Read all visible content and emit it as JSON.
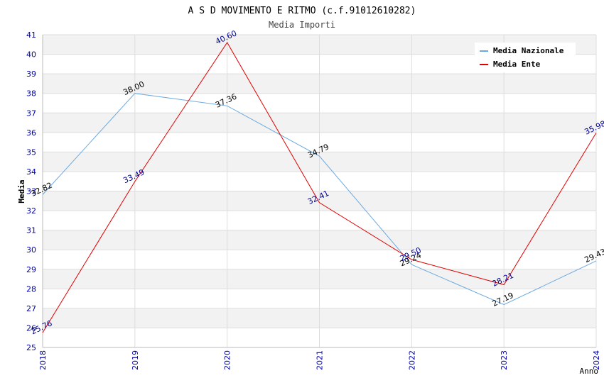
{
  "chart_data": {
    "type": "line",
    "title": "A S D MOVIMENTO E RITMO (c.f.91012610282)",
    "subtitle": "Media Importi",
    "xlabel": "Anno",
    "ylabel": "Media",
    "x": [
      "2018",
      "2019",
      "2020",
      "2021",
      "2022",
      "2023",
      "2024"
    ],
    "yticks": [
      "25",
      "26",
      "27",
      "28",
      "29",
      "30",
      "31",
      "32",
      "33",
      "34",
      "35",
      "36",
      "37",
      "38",
      "39",
      "40",
      "41"
    ],
    "ylim": [
      25,
      41
    ],
    "grid": true,
    "legend_position": "top-right",
    "series": [
      {
        "name": "Media Nazionale",
        "color": "#6aa9e0",
        "label_color": "#000000",
        "values": [
          32.82,
          38.0,
          37.36,
          34.79,
          29.24,
          27.19,
          29.43
        ],
        "labels": [
          "32.82",
          "38.00",
          "37.36",
          "34.79",
          "29.24",
          "27.19",
          "29.43"
        ]
      },
      {
        "name": "Media Ente",
        "color": "#e00000",
        "label_color": "#000099",
        "values": [
          25.76,
          33.49,
          40.6,
          32.41,
          29.5,
          28.21,
          35.98
        ],
        "labels": [
          "25.76",
          "33.49",
          "40.60",
          "32.41",
          "29.50",
          "28.21",
          "35.98"
        ]
      }
    ]
  }
}
